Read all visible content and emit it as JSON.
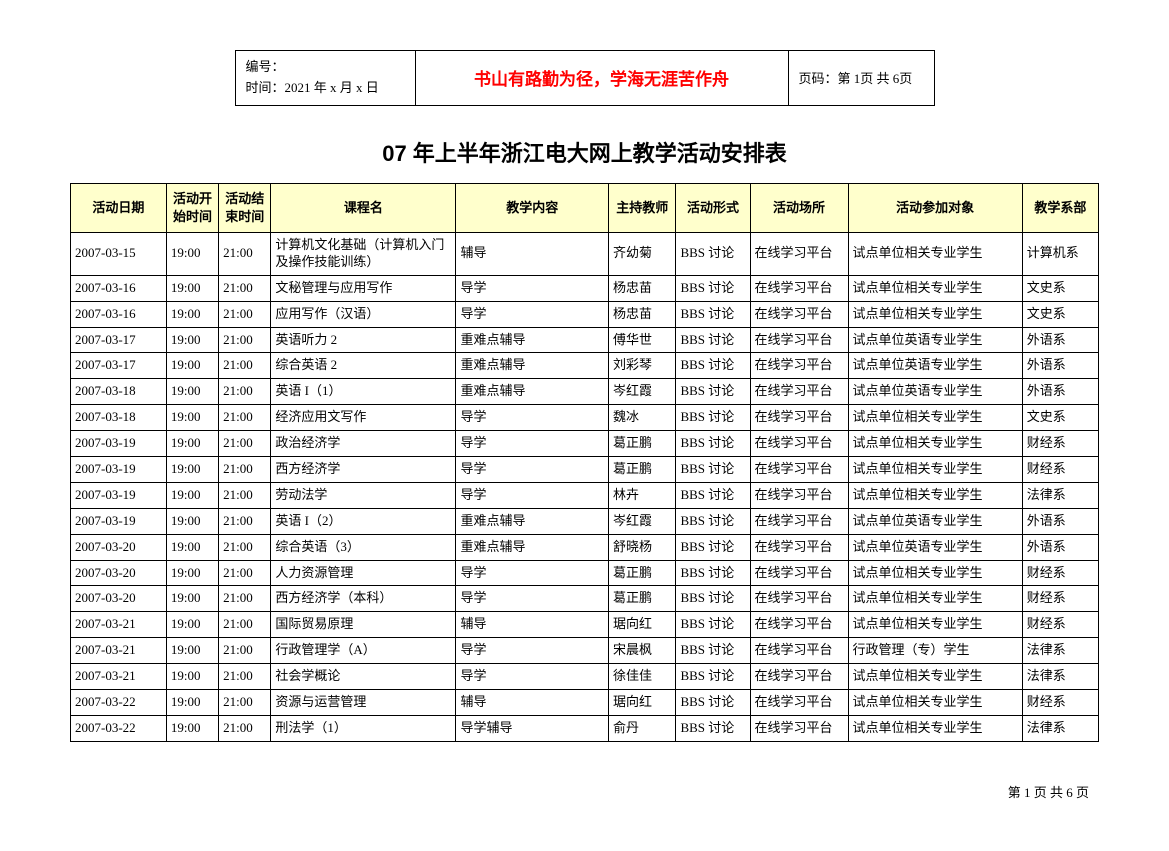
{
  "header": {
    "id_label": "编号：",
    "time_label": "时间：2021 年 x 月 x 日",
    "motto": "书山有路勤为径，学海无涯苦作舟",
    "page_info": "页码：第 1页 共 6页"
  },
  "title": "07 年上半年浙江电大网上教学活动安排表",
  "columns": {
    "date": "活动日期",
    "start": "活动开始时间",
    "end": "活动结束时间",
    "course": "课程名",
    "content": "教学内容",
    "teacher": "主持教师",
    "format": "活动形式",
    "venue": "活动场所",
    "participants": "活动参加对象",
    "dept": "教学系部"
  },
  "rows": [
    {
      "date": "2007-03-15",
      "start": "19:00",
      "end": "21:00",
      "course": "计算机文化基础（计算机入门及操作技能训练）",
      "content": "辅导",
      "teacher": "齐幼菊",
      "format": "BBS 讨论",
      "venue": "在线学习平台",
      "participants": "试点单位相关专业学生",
      "dept": "计算机系"
    },
    {
      "date": "2007-03-16",
      "start": "19:00",
      "end": "21:00",
      "course": "文秘管理与应用写作",
      "content": "导学",
      "teacher": "杨忠苗",
      "format": "BBS 讨论",
      "venue": "在线学习平台",
      "participants": "试点单位相关专业学生",
      "dept": "文史系"
    },
    {
      "date": "2007-03-16",
      "start": "19:00",
      "end": "21:00",
      "course": "应用写作（汉语）",
      "content": "导学",
      "teacher": "杨忠苗",
      "format": "BBS 讨论",
      "venue": "在线学习平台",
      "participants": "试点单位相关专业学生",
      "dept": "文史系"
    },
    {
      "date": "2007-03-17",
      "start": "19:00",
      "end": "21:00",
      "course": "英语听力 2",
      "content": "重难点辅导",
      "teacher": "傅华世",
      "format": "BBS 讨论",
      "venue": "在线学习平台",
      "participants": "试点单位英语专业学生",
      "dept": "外语系"
    },
    {
      "date": "2007-03-17",
      "start": "19:00",
      "end": "21:00",
      "course": "综合英语 2",
      "content": "重难点辅导",
      "teacher": "刘彩琴",
      "format": "BBS 讨论",
      "venue": "在线学习平台",
      "participants": "试点单位英语专业学生",
      "dept": "外语系"
    },
    {
      "date": "2007-03-18",
      "start": "19:00",
      "end": "21:00",
      "course": "英语 I（1）",
      "content": "重难点辅导",
      "teacher": "岑红霞",
      "format": "BBS 讨论",
      "venue": "在线学习平台",
      "participants": "试点单位英语专业学生",
      "dept": "外语系"
    },
    {
      "date": "2007-03-18",
      "start": "19:00",
      "end": "21:00",
      "course": "经济应用文写作",
      "content": "导学",
      "teacher": "魏冰",
      "format": "BBS 讨论",
      "venue": "在线学习平台",
      "participants": "试点单位相关专业学生",
      "dept": "文史系"
    },
    {
      "date": "2007-03-19",
      "start": "19:00",
      "end": "21:00",
      "course": "政治经济学",
      "content": "导学",
      "teacher": "葛正鹏",
      "format": "BBS 讨论",
      "venue": "在线学习平台",
      "participants": "试点单位相关专业学生",
      "dept": "财经系"
    },
    {
      "date": "2007-03-19",
      "start": "19:00",
      "end": "21:00",
      "course": "西方经济学",
      "content": "导学",
      "teacher": "葛正鹏",
      "format": "BBS 讨论",
      "venue": "在线学习平台",
      "participants": "试点单位相关专业学生",
      "dept": "财经系"
    },
    {
      "date": "2007-03-19",
      "start": "19:00",
      "end": "21:00",
      "course": "劳动法学",
      "content": "导学",
      "teacher": "林卉",
      "format": "BBS 讨论",
      "venue": "在线学习平台",
      "participants": "试点单位相关专业学生",
      "dept": "法律系"
    },
    {
      "date": "2007-03-19",
      "start": "19:00",
      "end": "21:00",
      "course": "英语 I（2）",
      "content": "重难点辅导",
      "teacher": "岑红霞",
      "format": "BBS 讨论",
      "venue": "在线学习平台",
      "participants": "试点单位英语专业学生",
      "dept": "外语系"
    },
    {
      "date": "2007-03-20",
      "start": "19:00",
      "end": "21:00",
      "course": "综合英语（3）",
      "content": "重难点辅导",
      "teacher": "舒晓杨",
      "format": "BBS 讨论",
      "venue": "在线学习平台",
      "participants": "试点单位英语专业学生",
      "dept": "外语系"
    },
    {
      "date": "2007-03-20",
      "start": "19:00",
      "end": "21:00",
      "course": "人力资源管理",
      "content": "导学",
      "teacher": "葛正鹏",
      "format": "BBS 讨论",
      "venue": "在线学习平台",
      "participants": "试点单位相关专业学生",
      "dept": "财经系"
    },
    {
      "date": "2007-03-20",
      "start": "19:00",
      "end": "21:00",
      "course": "西方经济学（本科）",
      "content": "导学",
      "teacher": "葛正鹏",
      "format": "BBS 讨论",
      "venue": "在线学习平台",
      "participants": "试点单位相关专业学生",
      "dept": "财经系"
    },
    {
      "date": "2007-03-21",
      "start": "19:00",
      "end": "21:00",
      "course": "国际贸易原理",
      "content": "辅导",
      "teacher": "琚向红",
      "format": "BBS 讨论",
      "venue": "在线学习平台",
      "participants": "试点单位相关专业学生",
      "dept": "财经系"
    },
    {
      "date": "2007-03-21",
      "start": "19:00",
      "end": "21:00",
      "course": "行政管理学（A）",
      "content": "导学",
      "teacher": "宋晨枫",
      "format": "BBS 讨论",
      "venue": "在线学习平台",
      "participants": "行政管理（专）学生",
      "dept": "法律系"
    },
    {
      "date": "2007-03-21",
      "start": "19:00",
      "end": "21:00",
      "course": "社会学概论",
      "content": "导学",
      "teacher": "徐佳佳",
      "format": "BBS 讨论",
      "venue": "在线学习平台",
      "participants": "试点单位相关专业学生",
      "dept": "法律系"
    },
    {
      "date": "2007-03-22",
      "start": "19:00",
      "end": "21:00",
      "course": "资源与运营管理",
      "content": "辅导",
      "teacher": "琚向红",
      "format": "BBS 讨论",
      "venue": "在线学习平台",
      "participants": "试点单位相关专业学生",
      "dept": "财经系"
    },
    {
      "date": "2007-03-22",
      "start": "19:00",
      "end": "21:00",
      "course": "刑法学（1）",
      "content": "导学辅导",
      "teacher": "俞丹",
      "format": "BBS 讨论",
      "venue": "在线学习平台",
      "participants": "试点单位相关专业学生",
      "dept": "法律系"
    }
  ],
  "footer": "第 1 页 共 6 页"
}
